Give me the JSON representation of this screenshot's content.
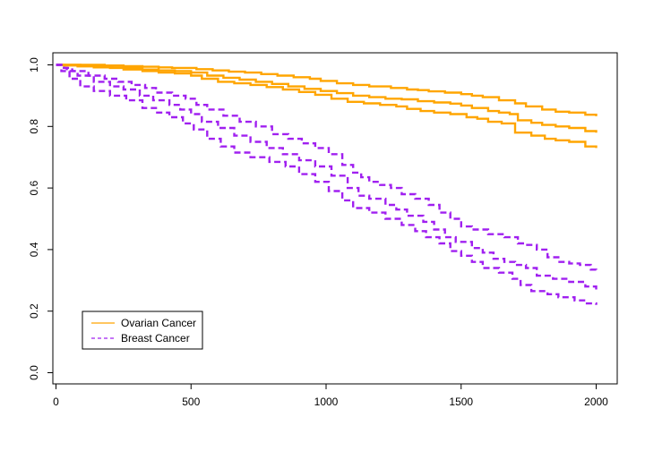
{
  "chart_data": {
    "type": "line",
    "title": "",
    "xlabel": "",
    "ylabel": "",
    "xlim": [
      0,
      2000
    ],
    "ylim": [
      0.0,
      1.0
    ],
    "x_ticks": [
      0,
      500,
      1000,
      1500,
      2000
    ],
    "y_ticks": [
      0.0,
      0.2,
      0.4,
      0.6,
      0.8,
      1.0
    ],
    "x_tick_labels": [
      "0",
      "500",
      "1000",
      "1500",
      "2000"
    ],
    "y_tick_labels": [
      "0.0",
      "0.2",
      "0.4",
      "0.6",
      "0.8",
      "1.0"
    ],
    "grid": false,
    "legend_position": "bottom-left",
    "step": true,
    "series": [
      {
        "name": "Ovarian Cancer",
        "role": "upper",
        "color": "#FFA500",
        "dash": "solid",
        "x": [
          0,
          60,
          120,
          180,
          250,
          320,
          380,
          430,
          500,
          520,
          580,
          640,
          700,
          760,
          820,
          880,
          940,
          980,
          1040,
          1100,
          1160,
          1240,
          1300,
          1340,
          1380,
          1440,
          1500,
          1540,
          1580,
          1640,
          1700,
          1740,
          1800,
          1850,
          1900,
          1960,
          2000
        ],
        "y": [
          1.0,
          1.0,
          1.0,
          0.998,
          0.996,
          0.994,
          0.992,
          0.99,
          0.99,
          0.986,
          0.982,
          0.978,
          0.975,
          0.97,
          0.965,
          0.96,
          0.955,
          0.948,
          0.94,
          0.935,
          0.93,
          0.925,
          0.92,
          0.918,
          0.914,
          0.91,
          0.905,
          0.9,
          0.895,
          0.885,
          0.875,
          0.865,
          0.855,
          0.848,
          0.845,
          0.838,
          0.833
        ]
      },
      {
        "name": "Ovarian Cancer",
        "role": "estimate",
        "color": "#FFA500",
        "dash": "solid",
        "x": [
          0,
          40,
          90,
          150,
          210,
          260,
          320,
          380,
          440,
          500,
          560,
          620,
          680,
          740,
          800,
          860,
          920,
          980,
          1040,
          1100,
          1160,
          1220,
          1280,
          1340,
          1400,
          1460,
          1500,
          1540,
          1600,
          1640,
          1680,
          1710,
          1760,
          1800,
          1850,
          1900,
          1960,
          2000
        ],
        "y": [
          1.0,
          1.0,
          0.998,
          0.995,
          0.992,
          0.99,
          0.985,
          0.982,
          0.98,
          0.975,
          0.965,
          0.958,
          0.952,
          0.945,
          0.938,
          0.93,
          0.922,
          0.915,
          0.908,
          0.9,
          0.895,
          0.89,
          0.888,
          0.882,
          0.878,
          0.874,
          0.868,
          0.86,
          0.85,
          0.845,
          0.84,
          0.82,
          0.812,
          0.805,
          0.8,
          0.795,
          0.785,
          0.78
        ]
      },
      {
        "name": "Ovarian Cancer",
        "role": "lower",
        "color": "#FFA500",
        "dash": "solid",
        "x": [
          0,
          30,
          80,
          140,
          200,
          250,
          320,
          380,
          440,
          500,
          540,
          600,
          660,
          720,
          780,
          840,
          900,
          960,
          1020,
          1080,
          1140,
          1200,
          1260,
          1300,
          1350,
          1400,
          1460,
          1520,
          1560,
          1600,
          1650,
          1700,
          1760,
          1810,
          1850,
          1900,
          1960,
          2000
        ],
        "y": [
          1.0,
          0.998,
          0.995,
          0.992,
          0.99,
          0.985,
          0.98,
          0.975,
          0.972,
          0.965,
          0.955,
          0.945,
          0.94,
          0.935,
          0.928,
          0.92,
          0.912,
          0.903,
          0.89,
          0.88,
          0.875,
          0.87,
          0.865,
          0.857,
          0.85,
          0.845,
          0.84,
          0.83,
          0.825,
          0.815,
          0.81,
          0.78,
          0.77,
          0.76,
          0.755,
          0.75,
          0.735,
          0.73
        ]
      },
      {
        "name": "Breast Cancer",
        "role": "upper",
        "color": "#A020F0",
        "dash": "dashed",
        "x": [
          0,
          30,
          60,
          120,
          180,
          230,
          280,
          330,
          370,
          430,
          480,
          520,
          560,
          620,
          680,
          740,
          800,
          860,
          910,
          960,
          1010,
          1060,
          1100,
          1130,
          1160,
          1200,
          1240,
          1280,
          1330,
          1380,
          1420,
          1460,
          1500,
          1540,
          1600,
          1660,
          1710,
          1740,
          1780,
          1820,
          1860,
          1900,
          1940,
          1980,
          2000
        ],
        "y": [
          1.0,
          0.99,
          0.98,
          0.965,
          0.955,
          0.945,
          0.935,
          0.925,
          0.91,
          0.9,
          0.89,
          0.87,
          0.855,
          0.835,
          0.815,
          0.8,
          0.775,
          0.76,
          0.745,
          0.73,
          0.71,
          0.675,
          0.65,
          0.635,
          0.62,
          0.61,
          0.6,
          0.58,
          0.565,
          0.545,
          0.52,
          0.5,
          0.475,
          0.465,
          0.45,
          0.44,
          0.42,
          0.415,
          0.4,
          0.375,
          0.36,
          0.355,
          0.35,
          0.335,
          0.33
        ]
      },
      {
        "name": "Breast Cancer",
        "role": "estimate",
        "color": "#A020F0",
        "dash": "dashed",
        "x": [
          0,
          20,
          40,
          80,
          140,
          200,
          250,
          310,
          360,
          420,
          460,
          500,
          540,
          600,
          660,
          720,
          780,
          840,
          900,
          960,
          1020,
          1080,
          1120,
          1160,
          1220,
          1260,
          1300,
          1360,
          1400,
          1440,
          1480,
          1540,
          1580,
          1620,
          1660,
          1700,
          1740,
          1780,
          1840,
          1900,
          1960,
          2000
        ],
        "y": [
          1.0,
          0.99,
          0.98,
          0.965,
          0.945,
          0.93,
          0.92,
          0.9,
          0.885,
          0.87,
          0.855,
          0.84,
          0.815,
          0.795,
          0.77,
          0.75,
          0.73,
          0.71,
          0.69,
          0.67,
          0.64,
          0.6,
          0.575,
          0.565,
          0.545,
          0.53,
          0.51,
          0.49,
          0.465,
          0.44,
          0.425,
          0.405,
          0.39,
          0.37,
          0.36,
          0.35,
          0.34,
          0.315,
          0.305,
          0.295,
          0.28,
          0.27
        ]
      },
      {
        "name": "Breast Cancer",
        "role": "lower",
        "color": "#A020F0",
        "dash": "dashed",
        "x": [
          0,
          20,
          50,
          90,
          140,
          200,
          260,
          320,
          370,
          420,
          470,
          510,
          560,
          610,
          660,
          720,
          790,
          850,
          900,
          960,
          1010,
          1060,
          1100,
          1160,
          1220,
          1280,
          1330,
          1370,
          1420,
          1460,
          1500,
          1540,
          1580,
          1640,
          1690,
          1720,
          1760,
          1820,
          1860,
          1920,
          1960,
          2000
        ],
        "y": [
          1.0,
          0.98,
          0.955,
          0.93,
          0.915,
          0.9,
          0.885,
          0.86,
          0.845,
          0.83,
          0.81,
          0.79,
          0.76,
          0.735,
          0.715,
          0.7,
          0.685,
          0.67,
          0.645,
          0.62,
          0.59,
          0.56,
          0.535,
          0.52,
          0.5,
          0.48,
          0.46,
          0.44,
          0.42,
          0.395,
          0.38,
          0.36,
          0.34,
          0.325,
          0.305,
          0.285,
          0.265,
          0.255,
          0.245,
          0.235,
          0.225,
          0.22
        ]
      }
    ],
    "legend": [
      {
        "label": "Ovarian Cancer",
        "color": "#FFA500",
        "dash": "solid"
      },
      {
        "label": "Breast Cancer",
        "color": "#A020F0",
        "dash": "dashed"
      }
    ]
  }
}
